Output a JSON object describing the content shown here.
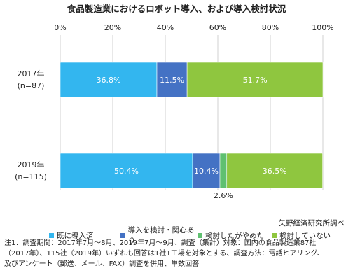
{
  "title": "食品製造業におけるロボット導入、および導入検討状況",
  "source": "矢野経済研究所調べ",
  "notes": [
    "注1．調査期間：2017年7月～8月、2019年7月～9月、調査（集計）対象：国内の食品製造業87社",
    "（2017年）、115社（2019年）いずれも回答は1社1工場を対象とする、調査方法：電話ヒアリング、",
    "及びアンケート（郵送、メール、FAX）調査を併用、単数回答"
  ],
  "chart_data": {
    "type": "bar",
    "orientation": "horizontal",
    "stacked": true,
    "xlim": [
      0,
      100
    ],
    "x_ticks": [
      "0%",
      "20%",
      "40%",
      "60%",
      "80%",
      "100%"
    ],
    "x_axis_position": "top",
    "grid": true,
    "legend_position": "bottom",
    "categories": [
      {
        "label": "2017年",
        "sublabel": "(n=87)"
      },
      {
        "label": "2019年",
        "sublabel": "(n=115)"
      }
    ],
    "series": [
      {
        "name": "既に導入済",
        "color": "#33b6ef",
        "values": [
          36.8,
          50.4
        ],
        "labels": [
          "36.8%",
          "50.4%"
        ]
      },
      {
        "name": "導入を検討・関心あり",
        "color": "#4472c4",
        "values": [
          11.5,
          10.4
        ],
        "labels": [
          "11.5%",
          "10.4%"
        ]
      },
      {
        "name": "検討したがやめた",
        "color": "#5fc070",
        "values": [
          0,
          2.6
        ],
        "labels": [
          "",
          "2.6%"
        ]
      },
      {
        "name": "検討していない",
        "color": "#8fc63f",
        "values": [
          51.7,
          36.5
        ],
        "labels": [
          "51.7%",
          "36.5%"
        ]
      }
    ]
  }
}
